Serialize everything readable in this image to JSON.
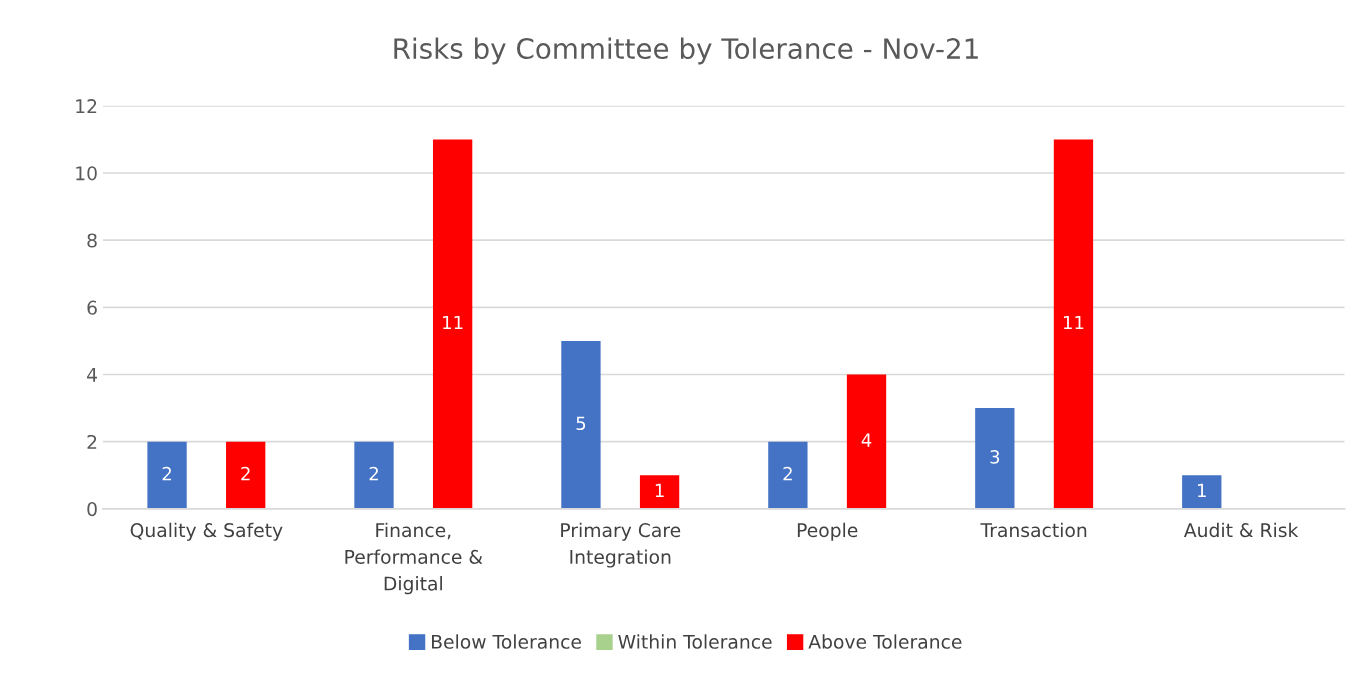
{
  "chart_data": {
    "type": "bar",
    "title": "Risks by Committee by Tolerance - Nov-21",
    "categories": [
      "Quality & Safety",
      "Finance,\nPerformance &\nDigital",
      "Primary Care\nIntegration",
      "People",
      "Transaction",
      "Audit & Risk"
    ],
    "series": [
      {
        "name": "Below Tolerance",
        "color": "#4472c4",
        "values": [
          2,
          2,
          5,
          2,
          3,
          1
        ]
      },
      {
        "name": "Within Tolerance",
        "color": "#a9d18e",
        "values": [
          null,
          null,
          null,
          null,
          null,
          null
        ]
      },
      {
        "name": "Above Tolerance",
        "color": "#ff0000",
        "values": [
          2,
          11,
          1,
          4,
          11,
          null
        ]
      }
    ],
    "ylim": [
      0,
      12
    ],
    "yticks": [
      0,
      2,
      4,
      6,
      8,
      10,
      12
    ],
    "grid": "y",
    "legend": "bottom",
    "data_labels": true
  }
}
